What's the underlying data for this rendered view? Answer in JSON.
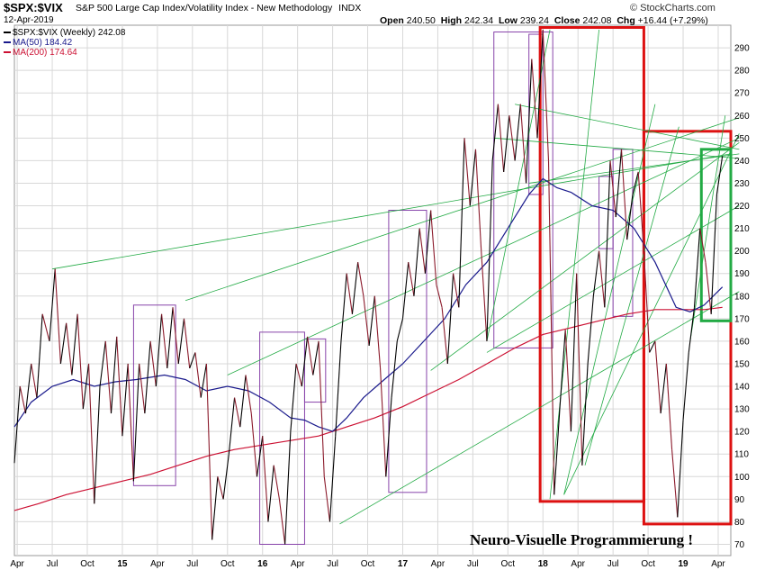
{
  "header": {
    "symbol": "$SPX:$VIX",
    "name": "S&P 500 Large Cap Index/Volatility Index - New Methodology",
    "exchange": "INDX",
    "date": "12-Apr-2019",
    "brand": "© StockCharts.com",
    "open_label": "Open",
    "open": "240.50",
    "high_label": "High",
    "high": "242.34",
    "low_label": "Low",
    "low": "239.24",
    "close_label": "Close",
    "close": "242.08",
    "chg_label": "Chg",
    "chg": "+16.44 (+7.29%)"
  },
  "legend": {
    "price": "$SPX:$VIX (Weekly) 242.08",
    "ma50": "MA(50) 184.42",
    "ma200": "MA(200) 174.64"
  },
  "annotation": "Neuro-Visuelle Programmierung !",
  "colors": {
    "price_up": "#000000",
    "price_down": "#8b1a2b",
    "ma50": "#1a1a8c",
    "ma200": "#cc1133",
    "trend": "#22aa44",
    "box_purple": "#8844aa",
    "box_red": "#dd1111",
    "box_green": "#22aa44",
    "grid": "#d8d8d8"
  },
  "chart_data": {
    "type": "line",
    "title": "$SPX:$VIX S&P 500 Large Cap Index/Volatility Index - New Methodology",
    "x_range": [
      2014.23,
      2019.34
    ],
    "ylim": [
      65,
      300
    ],
    "y_ticks": [
      70,
      80,
      90,
      100,
      110,
      120,
      130,
      140,
      150,
      160,
      170,
      180,
      190,
      200,
      210,
      220,
      230,
      240,
      250,
      260,
      270,
      280,
      290
    ],
    "x_ticks": [
      {
        "t": 2014.25,
        "label": "Apr",
        "year": false
      },
      {
        "t": 2014.5,
        "label": "Jul",
        "year": false
      },
      {
        "t": 2014.75,
        "label": "Oct",
        "year": false
      },
      {
        "t": 2015.0,
        "label": "15",
        "year": true
      },
      {
        "t": 2015.25,
        "label": "Apr",
        "year": false
      },
      {
        "t": 2015.5,
        "label": "Jul",
        "year": false
      },
      {
        "t": 2015.75,
        "label": "Oct",
        "year": false
      },
      {
        "t": 2016.0,
        "label": "16",
        "year": true
      },
      {
        "t": 2016.25,
        "label": "Apr",
        "year": false
      },
      {
        "t": 2016.5,
        "label": "Jul",
        "year": false
      },
      {
        "t": 2016.75,
        "label": "Oct",
        "year": false
      },
      {
        "t": 2017.0,
        "label": "17",
        "year": true
      },
      {
        "t": 2017.25,
        "label": "Apr",
        "year": false
      },
      {
        "t": 2017.5,
        "label": "Jul",
        "year": false
      },
      {
        "t": 2017.75,
        "label": "Oct",
        "year": false
      },
      {
        "t": 2018.0,
        "label": "18",
        "year": true
      },
      {
        "t": 2018.25,
        "label": "Apr",
        "year": false
      },
      {
        "t": 2018.5,
        "label": "Jul",
        "year": false
      },
      {
        "t": 2018.75,
        "label": "Oct",
        "year": false
      },
      {
        "t": 2019.0,
        "label": "19",
        "year": true
      },
      {
        "t": 2019.25,
        "label": "Apr",
        "year": false
      }
    ],
    "series": [
      {
        "name": "$SPX:$VIX (Weekly)",
        "points": [
          [
            2014.23,
            106
          ],
          [
            2014.27,
            140
          ],
          [
            2014.31,
            128
          ],
          [
            2014.35,
            150
          ],
          [
            2014.39,
            135
          ],
          [
            2014.43,
            172
          ],
          [
            2014.48,
            160
          ],
          [
            2014.52,
            192
          ],
          [
            2014.56,
            150
          ],
          [
            2014.6,
            168
          ],
          [
            2014.64,
            145
          ],
          [
            2014.68,
            172
          ],
          [
            2014.72,
            130
          ],
          [
            2014.76,
            150
          ],
          [
            2014.8,
            88
          ],
          [
            2014.84,
            140
          ],
          [
            2014.88,
            160
          ],
          [
            2014.92,
            128
          ],
          [
            2014.96,
            162
          ],
          [
            2015.0,
            118
          ],
          [
            2015.04,
            150
          ],
          [
            2015.08,
            98
          ],
          [
            2015.12,
            150
          ],
          [
            2015.16,
            128
          ],
          [
            2015.2,
            160
          ],
          [
            2015.24,
            140
          ],
          [
            2015.28,
            172
          ],
          [
            2015.32,
            148
          ],
          [
            2015.36,
            175
          ],
          [
            2015.4,
            150
          ],
          [
            2015.44,
            170
          ],
          [
            2015.48,
            148
          ],
          [
            2015.52,
            155
          ],
          [
            2015.56,
            135
          ],
          [
            2015.6,
            150
          ],
          [
            2015.64,
            72
          ],
          [
            2015.68,
            100
          ],
          [
            2015.72,
            90
          ],
          [
            2015.76,
            110
          ],
          [
            2015.8,
            135
          ],
          [
            2015.84,
            122
          ],
          [
            2015.88,
            145
          ],
          [
            2015.92,
            128
          ],
          [
            2015.96,
            100
          ],
          [
            2016.0,
            118
          ],
          [
            2016.04,
            80
          ],
          [
            2016.08,
            105
          ],
          [
            2016.12,
            90
          ],
          [
            2016.16,
            70
          ],
          [
            2016.2,
            120
          ],
          [
            2016.24,
            150
          ],
          [
            2016.28,
            140
          ],
          [
            2016.32,
            162
          ],
          [
            2016.36,
            145
          ],
          [
            2016.4,
            160
          ],
          [
            2016.44,
            100
          ],
          [
            2016.48,
            80
          ],
          [
            2016.52,
            118
          ],
          [
            2016.56,
            160
          ],
          [
            2016.6,
            190
          ],
          [
            2016.64,
            172
          ],
          [
            2016.68,
            195
          ],
          [
            2016.72,
            180
          ],
          [
            2016.76,
            158
          ],
          [
            2016.8,
            180
          ],
          [
            2016.84,
            148
          ],
          [
            2016.88,
            100
          ],
          [
            2016.92,
            135
          ],
          [
            2016.96,
            160
          ],
          [
            2017.0,
            170
          ],
          [
            2017.04,
            195
          ],
          [
            2017.08,
            180
          ],
          [
            2017.12,
            210
          ],
          [
            2017.16,
            190
          ],
          [
            2017.2,
            218
          ],
          [
            2017.24,
            185
          ],
          [
            2017.28,
            175
          ],
          [
            2017.32,
            150
          ],
          [
            2017.36,
            190
          ],
          [
            2017.4,
            175
          ],
          [
            2017.44,
            250
          ],
          [
            2017.48,
            220
          ],
          [
            2017.52,
            245
          ],
          [
            2017.56,
            200
          ],
          [
            2017.6,
            160
          ],
          [
            2017.64,
            240
          ],
          [
            2017.68,
            265
          ],
          [
            2017.72,
            235
          ],
          [
            2017.76,
            260
          ],
          [
            2017.8,
            240
          ],
          [
            2017.84,
            265
          ],
          [
            2017.88,
            230
          ],
          [
            2017.92,
            285
          ],
          [
            2017.96,
            250
          ],
          [
            2018.0,
            298
          ],
          [
            2018.04,
            240
          ],
          [
            2018.08,
            92
          ],
          [
            2018.12,
            130
          ],
          [
            2018.16,
            165
          ],
          [
            2018.2,
            120
          ],
          [
            2018.24,
            190
          ],
          [
            2018.28,
            105
          ],
          [
            2018.32,
            150
          ],
          [
            2018.36,
            180
          ],
          [
            2018.4,
            200
          ],
          [
            2018.44,
            175
          ],
          [
            2018.48,
            240
          ],
          [
            2018.52,
            215
          ],
          [
            2018.56,
            245
          ],
          [
            2018.6,
            205
          ],
          [
            2018.64,
            225
          ],
          [
            2018.68,
            235
          ],
          [
            2018.72,
            200
          ],
          [
            2018.76,
            155
          ],
          [
            2018.8,
            160
          ],
          [
            2018.84,
            128
          ],
          [
            2018.88,
            150
          ],
          [
            2018.92,
            112
          ],
          [
            2018.96,
            82
          ],
          [
            2019.0,
            125
          ],
          [
            2019.04,
            155
          ],
          [
            2019.08,
            175
          ],
          [
            2019.12,
            210
          ],
          [
            2019.16,
            195
          ],
          [
            2019.2,
            172
          ],
          [
            2019.24,
            225
          ],
          [
            2019.28,
            242
          ]
        ]
      },
      {
        "name": "MA(50)",
        "points": [
          [
            2014.23,
            122
          ],
          [
            2014.35,
            133
          ],
          [
            2014.5,
            140
          ],
          [
            2014.65,
            143
          ],
          [
            2014.8,
            140
          ],
          [
            2014.95,
            142
          ],
          [
            2015.1,
            143
          ],
          [
            2015.3,
            145
          ],
          [
            2015.45,
            143
          ],
          [
            2015.6,
            138
          ],
          [
            2015.75,
            140
          ],
          [
            2015.9,
            138
          ],
          [
            2016.05,
            133
          ],
          [
            2016.2,
            126
          ],
          [
            2016.3,
            125
          ],
          [
            2016.4,
            122
          ],
          [
            2016.5,
            120
          ],
          [
            2016.6,
            126
          ],
          [
            2016.72,
            135
          ],
          [
            2016.85,
            142
          ],
          [
            2017.0,
            150
          ],
          [
            2017.15,
            160
          ],
          [
            2017.3,
            170
          ],
          [
            2017.45,
            185
          ],
          [
            2017.6,
            195
          ],
          [
            2017.75,
            210
          ],
          [
            2017.9,
            225
          ],
          [
            2018.0,
            232
          ],
          [
            2018.1,
            228
          ],
          [
            2018.2,
            226
          ],
          [
            2018.35,
            220
          ],
          [
            2018.5,
            218
          ],
          [
            2018.65,
            210
          ],
          [
            2018.8,
            195
          ],
          [
            2018.95,
            175
          ],
          [
            2019.05,
            173
          ],
          [
            2019.15,
            176
          ],
          [
            2019.28,
            184
          ]
        ]
      },
      {
        "name": "MA(200)",
        "points": [
          [
            2014.23,
            85
          ],
          [
            2014.4,
            88
          ],
          [
            2014.6,
            92
          ],
          [
            2014.8,
            95
          ],
          [
            2015.0,
            98
          ],
          [
            2015.2,
            101
          ],
          [
            2015.4,
            105
          ],
          [
            2015.6,
            109
          ],
          [
            2015.8,
            112
          ],
          [
            2016.0,
            114
          ],
          [
            2016.2,
            116
          ],
          [
            2016.4,
            118
          ],
          [
            2016.6,
            122
          ],
          [
            2016.8,
            126
          ],
          [
            2017.0,
            131
          ],
          [
            2017.2,
            137
          ],
          [
            2017.4,
            143
          ],
          [
            2017.6,
            150
          ],
          [
            2017.8,
            157
          ],
          [
            2018.0,
            163
          ],
          [
            2018.2,
            166
          ],
          [
            2018.4,
            169
          ],
          [
            2018.6,
            172
          ],
          [
            2018.8,
            174
          ],
          [
            2019.0,
            174
          ],
          [
            2019.15,
            174
          ],
          [
            2019.28,
            175
          ]
        ]
      }
    ],
    "boxes": [
      {
        "t0": 2015.08,
        "t1": 2015.38,
        "v0": 96,
        "v1": 176,
        "color": "purple"
      },
      {
        "t0": 2015.98,
        "t1": 2016.3,
        "v0": 70,
        "v1": 164,
        "color": "purple"
      },
      {
        "t0": 2016.3,
        "t1": 2016.45,
        "v0": 133,
        "v1": 161,
        "color": "purple"
      },
      {
        "t0": 2016.9,
        "t1": 2017.17,
        "v0": 93,
        "v1": 218,
        "color": "purple"
      },
      {
        "t0": 2017.65,
        "t1": 2018.07,
        "v0": 157,
        "v1": 297,
        "color": "purple"
      },
      {
        "t0": 2017.9,
        "t1": 2018.0,
        "v0": 225,
        "v1": 296,
        "color": "purple"
      },
      {
        "t0": 2018.4,
        "t1": 2018.5,
        "v0": 201,
        "v1": 233,
        "color": "purple"
      },
      {
        "t0": 2018.5,
        "t1": 2018.64,
        "v0": 171,
        "v1": 245,
        "color": "purple"
      },
      {
        "t0": 2017.98,
        "t1": 2018.72,
        "v0": 89,
        "v1": 299,
        "color": "red"
      },
      {
        "t0": 2018.72,
        "t1": 2019.34,
        "v0": 79,
        "v1": 253,
        "color": "red"
      },
      {
        "t0": 2019.13,
        "t1": 2019.34,
        "v0": 169,
        "v1": 245,
        "color": "green"
      }
    ],
    "trendlines": [
      [
        [
          2014.5,
          192
        ],
        [
          2019.34,
          243
        ]
      ],
      [
        [
          2015.45,
          178
        ],
        [
          2019.4,
          259
        ]
      ],
      [
        [
          2015.75,
          145
        ],
        [
          2019.4,
          250
        ]
      ],
      [
        [
          2016.55,
          79
        ],
        [
          2019.4,
          182
        ]
      ],
      [
        [
          2017.2,
          147
        ],
        [
          2019.4,
          248
        ]
      ],
      [
        [
          2017.6,
          155
        ],
        [
          2019.4,
          220
        ]
      ],
      [
        [
          2017.65,
          250
        ],
        [
          2019.4,
          241
        ]
      ],
      [
        [
          2017.8,
          265
        ],
        [
          2019.4,
          245
        ]
      ],
      [
        [
          2017.9,
          230
        ],
        [
          2019.4,
          243
        ]
      ],
      [
        [
          2017.6,
          160
        ],
        [
          2018.05,
          298
        ]
      ],
      [
        [
          2018.05,
          90
        ],
        [
          2018.4,
          298
        ]
      ],
      [
        [
          2018.15,
          92
        ],
        [
          2018.8,
          265
        ]
      ],
      [
        [
          2018.15,
          92
        ],
        [
          2019.4,
          252
        ]
      ],
      [
        [
          2018.3,
          105
        ],
        [
          2018.97,
          255
        ]
      ],
      [
        [
          2019.05,
          160
        ],
        [
          2019.3,
          260
        ]
      ]
    ]
  }
}
